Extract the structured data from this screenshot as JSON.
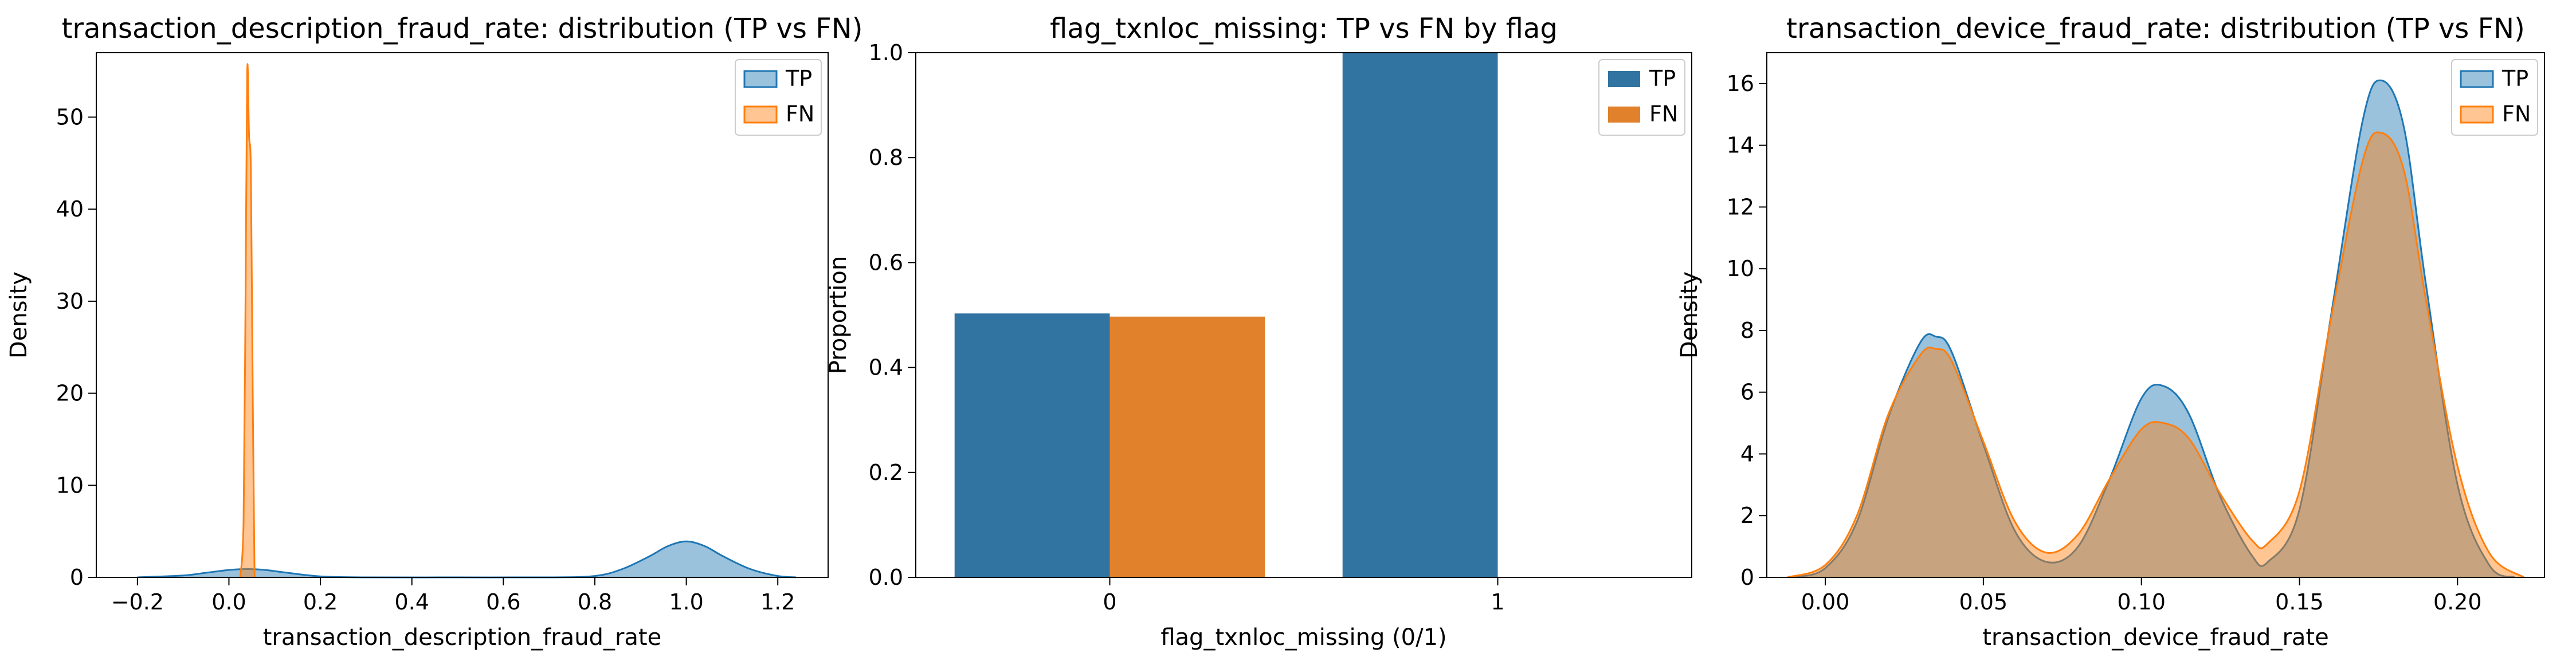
{
  "colors": {
    "tp": "#1f77b4",
    "fn": "#ff7f0e",
    "tp_bar": "#3274a1",
    "fn_bar": "#e1812c"
  },
  "chart_data": [
    {
      "type": "area",
      "title": "transaction_description_fraud_rate: distribution (TP vs FN)",
      "xlabel": "transaction_description_fraud_rate",
      "ylabel": "Density",
      "xlim": [
        -0.29,
        1.31
      ],
      "ylim": [
        0,
        57
      ],
      "xticks": [
        -0.2,
        0.0,
        0.2,
        0.4,
        0.6,
        0.8,
        1.0,
        1.2
      ],
      "xtick_labels": [
        "−0.2",
        "0.0",
        "0.2",
        "0.4",
        "0.6",
        "0.8",
        "1.0",
        "1.2"
      ],
      "yticks": [
        0,
        10,
        20,
        30,
        40,
        50
      ],
      "ytick_labels": [
        "0",
        "10",
        "20",
        "30",
        "40",
        "50"
      ],
      "grid": false,
      "legend": "top-right",
      "series": [
        {
          "name": "TP",
          "x": [
            -0.2,
            -0.1,
            -0.05,
            0.0,
            0.04,
            0.08,
            0.12,
            0.2,
            0.3,
            0.5,
            0.7,
            0.8,
            0.86,
            0.92,
            0.96,
            1.0,
            1.04,
            1.08,
            1.14,
            1.2,
            1.24
          ],
          "y": [
            0.0,
            0.2,
            0.5,
            0.8,
            0.9,
            0.8,
            0.55,
            0.1,
            0.0,
            0.0,
            0.0,
            0.15,
            0.9,
            2.3,
            3.4,
            3.9,
            3.4,
            2.3,
            0.9,
            0.15,
            0.0
          ]
        },
        {
          "name": "FN",
          "x": [
            0.025,
            0.032,
            0.036,
            0.04,
            0.044,
            0.048,
            0.052,
            0.056
          ],
          "y": [
            0.0,
            6.0,
            28.0,
            55.0,
            48.0,
            44.0,
            20.0,
            0.0
          ]
        }
      ]
    },
    {
      "type": "bar",
      "title": "flag_txnloc_missing: TP vs FN by flag",
      "xlabel": "flag_txnloc_missing (0/1)",
      "ylabel": "Proportion",
      "categories": [
        "0",
        "1"
      ],
      "ylim": [
        0,
        1.0
      ],
      "yticks": [
        0.0,
        0.2,
        0.4,
        0.6,
        0.8,
        1.0
      ],
      "ytick_labels": [
        "0.0",
        "0.2",
        "0.4",
        "0.6",
        "0.8",
        "1.0"
      ],
      "grid": false,
      "legend": "top-right",
      "series": [
        {
          "name": "TP",
          "values": [
            0.503,
            1.0
          ]
        },
        {
          "name": "FN",
          "values": [
            0.497,
            0.0
          ]
        }
      ]
    },
    {
      "type": "area",
      "title": "transaction_device_fraud_rate: distribution (TP vs FN)",
      "xlabel": "transaction_device_fraud_rate",
      "ylabel": "Density",
      "xlim": [
        -0.0185,
        0.2275
      ],
      "ylim": [
        0,
        17
      ],
      "xticks": [
        0.0,
        0.05,
        0.1,
        0.15,
        0.2
      ],
      "xtick_labels": [
        "0.00",
        "0.05",
        "0.10",
        "0.15",
        "0.20"
      ],
      "yticks": [
        0,
        2,
        4,
        6,
        8,
        10,
        12,
        14,
        16
      ],
      "ytick_labels": [
        "0",
        "2",
        "4",
        "6",
        "8",
        "10",
        "12",
        "14",
        "16"
      ],
      "grid": false,
      "legend": "top-right",
      "series": [
        {
          "name": "TP",
          "x": [
            -0.01,
            0.0,
            0.01,
            0.02,
            0.03,
            0.035,
            0.04,
            0.05,
            0.06,
            0.07,
            0.08,
            0.09,
            0.1,
            0.107,
            0.115,
            0.125,
            0.135,
            0.14,
            0.15,
            0.16,
            0.17,
            0.176,
            0.183,
            0.19,
            0.2,
            0.21,
            0.218
          ],
          "y": [
            0.0,
            0.3,
            1.8,
            5.2,
            7.6,
            7.8,
            7.3,
            4.3,
            1.5,
            0.5,
            1.0,
            3.2,
            5.8,
            6.2,
            5.3,
            2.6,
            0.7,
            0.5,
            2.2,
            8.5,
            14.8,
            16.1,
            14.6,
            9.5,
            3.0,
            0.4,
            0.0
          ]
        },
        {
          "name": "FN",
          "x": [
            -0.012,
            0.0,
            0.01,
            0.02,
            0.03,
            0.035,
            0.04,
            0.05,
            0.06,
            0.07,
            0.08,
            0.09,
            0.1,
            0.107,
            0.115,
            0.125,
            0.135,
            0.14,
            0.15,
            0.16,
            0.17,
            0.176,
            0.183,
            0.19,
            0.2,
            0.21,
            0.221
          ],
          "y": [
            0.0,
            0.4,
            2.0,
            5.3,
            7.2,
            7.4,
            7.0,
            4.4,
            1.8,
            0.8,
            1.4,
            3.2,
            4.8,
            5.0,
            4.5,
            2.7,
            1.2,
            1.1,
            2.8,
            8.4,
            13.5,
            14.4,
            13.2,
            9.0,
            3.6,
            0.8,
            0.0
          ]
        }
      ]
    }
  ]
}
